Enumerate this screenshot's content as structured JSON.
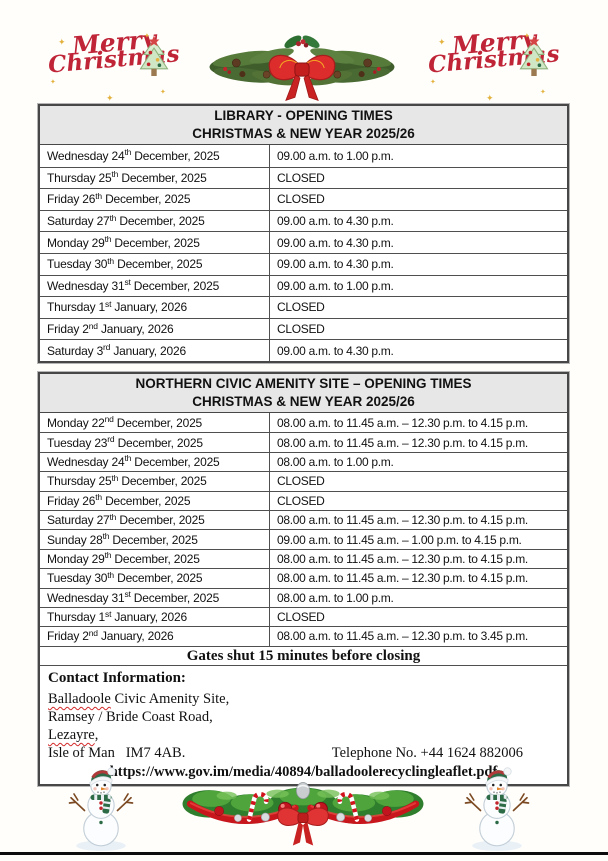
{
  "decorations": {
    "merry_word1": "Merry",
    "merry_word2": "Christmas",
    "sparkle": "✦"
  },
  "library_table": {
    "title_line1": "LIBRARY - OPENING TIMES",
    "title_line2": "CHRISTMAS & NEW YEAR 2025/26",
    "rows": [
      {
        "date_pre": "Wednesday 24",
        "ordinal": "th",
        "date_post": " December, 2025",
        "time": "09.00 a.m. to 1.00 p.m."
      },
      {
        "date_pre": "Thursday 25",
        "ordinal": "th",
        "date_post": " December, 2025",
        "time": "CLOSED"
      },
      {
        "date_pre": "Friday 26",
        "ordinal": "th",
        "date_post": " December, 2025",
        "time": "CLOSED"
      },
      {
        "date_pre": "Saturday 27",
        "ordinal": "th",
        "date_post": " December, 2025",
        "time": "09.00 a.m. to 4.30 p.m."
      },
      {
        "date_pre": "Monday 29",
        "ordinal": "th",
        "date_post": " December, 2025",
        "time": "09.00 a.m. to 4.30 p.m."
      },
      {
        "date_pre": "Tuesday 30",
        "ordinal": "th",
        "date_post": " December, 2025",
        "time": "09.00 a.m. to 4.30 p.m."
      },
      {
        "date_pre": "Wednesday 31",
        "ordinal": "st",
        "date_post": " December, 2025",
        "time": "09.00 a.m. to 1.00 p.m."
      },
      {
        "date_pre": "Thursday 1",
        "ordinal": "st",
        "date_post": " January, 2026",
        "time": "CLOSED"
      },
      {
        "date_pre": "Friday 2",
        "ordinal": "nd",
        "date_post": " January, 2026",
        "time": "CLOSED"
      },
      {
        "date_pre": "Saturday 3",
        "ordinal": "rd",
        "date_post": " January, 2026",
        "time": "09.00 a.m. to 4.30 p.m."
      }
    ]
  },
  "amenity_table": {
    "title_line1": "NORTHERN CIVIC AMENITY SITE – OPENING TIMES",
    "title_line2": "CHRISTMAS & NEW YEAR 2025/26",
    "rows": [
      {
        "date_pre": "Monday 22",
        "ordinal": "nd",
        "date_post": " December, 2025",
        "time": "08.00 a.m. to 11.45 a.m. – 12.30 p.m. to 4.15 p.m."
      },
      {
        "date_pre": "Tuesday 23",
        "ordinal": "rd",
        "date_post": " December, 2025",
        "time": "08.00 a.m. to 11.45 a.m. – 12.30 p.m. to 4.15 p.m."
      },
      {
        "date_pre": "Wednesday 24",
        "ordinal": "th",
        "date_post": " December, 2025",
        "time": "08.00 a.m. to 1.00 p.m."
      },
      {
        "date_pre": "Thursday 25",
        "ordinal": "th",
        "date_post": " December, 2025",
        "time": "CLOSED"
      },
      {
        "date_pre": "Friday 26",
        "ordinal": "th",
        "date_post": " December, 2025",
        "time": "CLOSED"
      },
      {
        "date_pre": "Saturday 27",
        "ordinal": "th",
        "date_post": " December, 2025",
        "time": "08.00 a.m. to 11.45 a.m. – 12.30 p.m. to 4.15 p.m."
      },
      {
        "date_pre": "Sunday 28",
        "ordinal": "th",
        "date_post": " December, 2025",
        "time": "09.00 a.m. to 11.45 a.m. – 1.00 p.m. to 4.15 p.m."
      },
      {
        "date_pre": "Monday 29",
        "ordinal": "th",
        "date_post": " December, 2025",
        "time": "08.00 a.m. to 11.45 a.m. – 12.30 p.m. to 4.15 p.m."
      },
      {
        "date_pre": "Tuesday 30",
        "ordinal": "th",
        "date_post": " December, 2025",
        "time": "08.00 a.m. to 11.45 a.m. – 12.30 p.m. to 4.15 p.m."
      },
      {
        "date_pre": "Wednesday 31",
        "ordinal": "st",
        "date_post": " December, 2025",
        "time": "08.00 a.m. to 1.00 p.m."
      },
      {
        "date_pre": "Thursday 1",
        "ordinal": "st",
        "date_post": " January, 2026",
        "time": "CLOSED"
      },
      {
        "date_pre": "Friday 2",
        "ordinal": "nd",
        "date_post": " January, 2026",
        "time": "08.00 a.m. to 11.45 a.m. – 12.30 p.m. to 3.45 p.m."
      }
    ],
    "gates_note": "Gates shut 15 minutes before closing"
  },
  "contact": {
    "heading": "Contact Information:",
    "address_line1_word": "Balladoole",
    "address_line1_rest": " Civic Amenity Site,",
    "address_line2": "Ramsey / Bride Coast Road,",
    "address_line3_word": "Lezayre",
    "address_line3_rest": ",",
    "address_line4": "Isle of Man   IM7 4AB.",
    "telephone": "Telephone No. +44 1624 882006",
    "url": "https://www.gov.im/media/40894/balladoolerecyclingleaflet.pdf"
  },
  "colors": {
    "header_bg": "#e7e7e7",
    "table_border": "#474747",
    "accent_red": "#bf2437",
    "garland_green": "#2f7e2d",
    "spellcheck_red": "#d22a2a"
  }
}
